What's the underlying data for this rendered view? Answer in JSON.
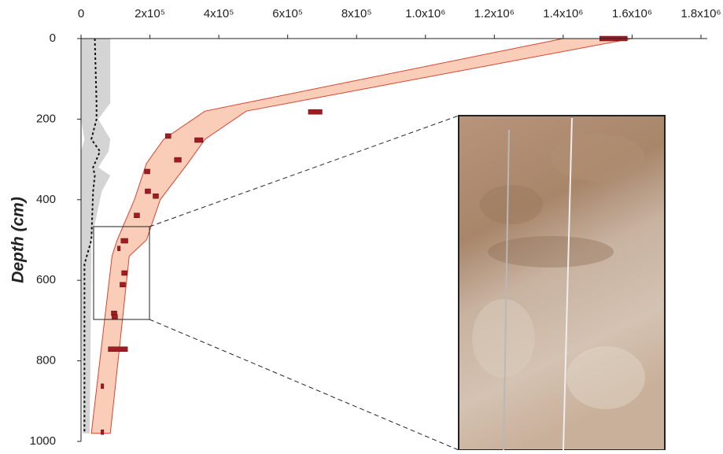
{
  "chart_data": {
    "type": "scatter",
    "ylabel": "Depth (cm)",
    "xlim": [
      0,
      1800000
    ],
    "ylim": [
      0,
      1000
    ],
    "y_inverted": true,
    "x_axis_position": "top",
    "xticks": [
      0,
      {
        "value": 200000,
        "label": "2x10⁵"
      },
      {
        "value": 400000,
        "label": "4x10⁵"
      },
      {
        "value": 600000,
        "label": "6x10⁵"
      },
      {
        "value": 800000,
        "label": "8x10⁵"
      },
      {
        "value": 1000000,
        "label": "1.0x10⁶"
      },
      {
        "value": 1200000,
        "label": "1.2x10⁶"
      },
      {
        "value": 1400000,
        "label": "1.4x10⁶"
      },
      {
        "value": 1600000,
        "label": "1.6x10⁶"
      },
      {
        "value": 1800000,
        "label": "1.8x10⁶"
      }
    ],
    "yticks": [
      0,
      200,
      400,
      600,
      800,
      1000
    ],
    "background_band": {
      "color": "#d4d4d4",
      "depth": [
        0,
        160,
        200,
        250,
        280,
        320,
        340,
        380,
        500,
        560,
        980
      ],
      "lower": [
        0,
        0,
        0,
        10000,
        0,
        0,
        0,
        0,
        0,
        0,
        5000
      ],
      "upper": [
        85000,
        85000,
        50000,
        85000,
        80000,
        50000,
        85000,
        60000,
        30000,
        30000,
        25000
      ]
    },
    "background_mean": {
      "color": "#111111",
      "depth": [
        0,
        160,
        200,
        250,
        280,
        320,
        340,
        380,
        500,
        560,
        980
      ],
      "x": [
        40000,
        45000,
        45000,
        30000,
        55000,
        35000,
        40000,
        35000,
        30000,
        10000,
        10000
      ]
    },
    "model_band": {
      "color": "#f9cdb8",
      "edge_color": "#d9442f",
      "depth": [
        0,
        180,
        250,
        310,
        400,
        500,
        540,
        980
      ],
      "lower": [
        1400000,
        360000,
        240000,
        190000,
        155000,
        105000,
        90000,
        30000
      ],
      "upper": [
        1600000,
        480000,
        360000,
        310000,
        230000,
        190000,
        140000,
        85000
      ]
    },
    "measurements": {
      "color": "#a01c22",
      "x": [
        1546000,
        680000,
        253000,
        342000,
        281000,
        192000,
        194000,
        217000,
        162000,
        126000,
        110000,
        126000,
        121000,
        96000,
        98000,
        107000,
        62000,
        62000
      ],
      "depth": [
        0,
        182,
        242,
        252,
        301,
        330,
        379,
        391,
        439,
        502,
        521,
        582,
        611,
        682,
        691,
        771,
        863,
        977
      ],
      "xerr": [
        40000,
        20000,
        8000,
        12000,
        10000,
        8000,
        8000,
        8000,
        8000,
        10000,
        4000,
        8000,
        8000,
        8000,
        8000,
        28000,
        4000,
        4000
      ]
    }
  }
}
